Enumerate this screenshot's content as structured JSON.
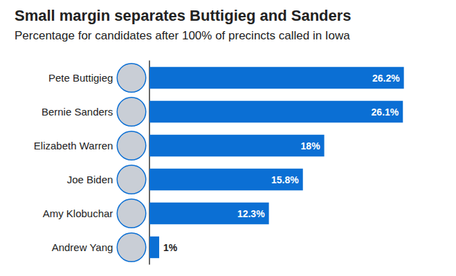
{
  "chart_data": {
    "type": "bar",
    "title": "Small margin separates Buttigieg and Sanders",
    "subtitle": "Percentage for candidates after 100% of precincts called in Iowa",
    "orientation": "horizontal",
    "categories": [
      "Pete Buttigieg",
      "Bernie Sanders",
      "Elizabeth Warren",
      "Joe Biden",
      "Amy Klobuchar",
      "Andrew Yang"
    ],
    "values": [
      26.2,
      26.1,
      18,
      15.8,
      12.3,
      1
    ],
    "value_labels": [
      "26.2%",
      "26.1%",
      "18%",
      "15.8%",
      "12.3%",
      "1%"
    ],
    "color": "#0b6fd4",
    "xlim": [
      0,
      30
    ],
    "data_labels": true,
    "tick_labels": "y",
    "grid": false
  }
}
